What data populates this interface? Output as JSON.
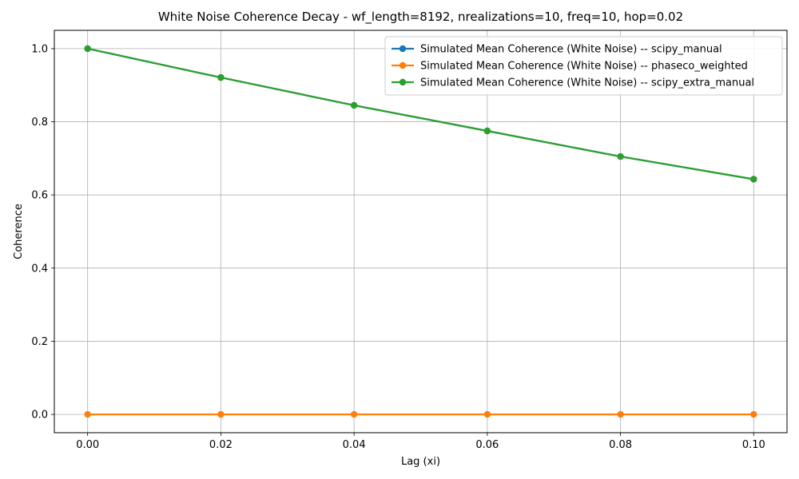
{
  "chart_data": {
    "type": "line",
    "title": "White Noise Coherence Decay - wf_length=8192, nrealizations=10, freq=10, hop=0.02",
    "xlabel": "Lag (xi)",
    "ylabel": "Coherence",
    "xlim": [
      -0.005,
      0.105
    ],
    "ylim": [
      -0.05,
      1.05
    ],
    "xticks": [
      0.0,
      0.02,
      0.04,
      0.06,
      0.08,
      0.1
    ],
    "xtick_labels": [
      "0.00",
      "0.02",
      "0.04",
      "0.06",
      "0.08",
      "0.10"
    ],
    "yticks": [
      0.0,
      0.2,
      0.4,
      0.6,
      0.8,
      1.0
    ],
    "ytick_labels": [
      "0.0",
      "0.2",
      "0.4",
      "0.6",
      "0.8",
      "1.0"
    ],
    "grid": true,
    "legend_position": "top-right",
    "x": [
      0.0,
      0.02,
      0.04,
      0.06,
      0.08,
      0.1
    ],
    "series": [
      {
        "name": "Simulated Mean Coherence (White Noise) -- scipy_manual",
        "color": "#1f77b4",
        "values": [
          1.0,
          0.921,
          0.845,
          0.775,
          0.705,
          0.643
        ]
      },
      {
        "name": "Simulated Mean Coherence (White Noise) -- phaseco_weighted",
        "color": "#ff7f0e",
        "values": [
          0.0,
          0.0,
          0.0,
          0.0,
          0.0,
          0.0
        ]
      },
      {
        "name": "Simulated Mean Coherence (White Noise) -- scipy_extra_manual",
        "color": "#2ca02c",
        "values": [
          1.0,
          0.921,
          0.845,
          0.775,
          0.705,
          0.643
        ]
      }
    ]
  }
}
